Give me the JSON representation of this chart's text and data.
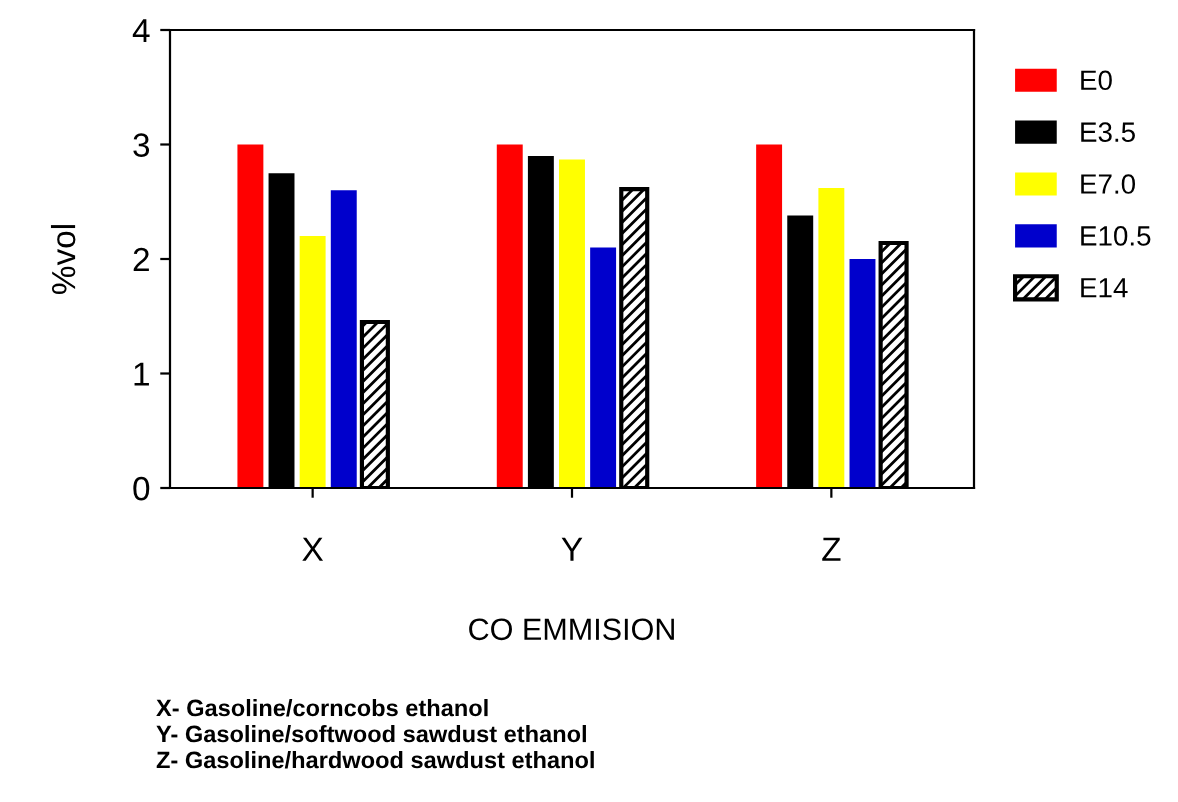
{
  "chart_data": {
    "type": "bar",
    "ylabel": "%vol",
    "xlabel": "CO EMMISION",
    "categories": [
      "X",
      "Y",
      "Z"
    ],
    "series": [
      {
        "name": "E0",
        "color": "#ff0000",
        "values": [
          3.0,
          3.0,
          3.0
        ]
      },
      {
        "name": "E3.5",
        "color": "#000000",
        "values": [
          2.75,
          2.9,
          2.38
        ]
      },
      {
        "name": "E7.0",
        "color": "#ffff00",
        "values": [
          2.2,
          2.87,
          2.62
        ]
      },
      {
        "name": "E10.5",
        "color": "#0000cc",
        "values": [
          2.6,
          2.1,
          2.0
        ]
      },
      {
        "name": "E14",
        "color": "#000000",
        "values": [
          1.45,
          2.61,
          2.14
        ]
      }
    ],
    "ylim": [
      0,
      4
    ],
    "yticks": [
      0,
      1,
      2,
      3,
      4
    ],
    "grid": false,
    "legend": "right",
    "annotations": [
      "X- Gasoline/corncobs ethanol",
      "Y- Gasoline/softwood sawdust ethanol",
      "Z- Gasoline/hardwood sawdust ethanol"
    ]
  }
}
